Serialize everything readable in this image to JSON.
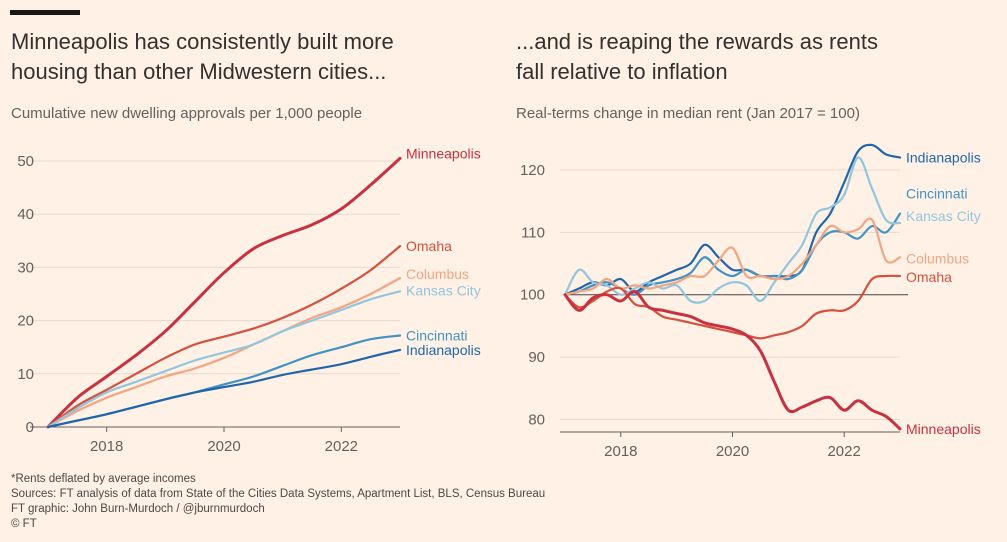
{
  "left": {
    "title_line1": "Minneapolis has consistently built more",
    "title_line2": "housing than other Midwestern cities...",
    "subtitle": "Cumulative new dwelling approvals per 1,000 people"
  },
  "right": {
    "title_line1": "...and is reaping the rewards as rents",
    "title_line2": "fall relative to inflation",
    "subtitle": "Real-terms change in median rent (Jan 2017 = 100)"
  },
  "footer": {
    "note": "*Rents deflated by average incomes",
    "sources": "Sources: FT analysis of data from State of the Cities Data Systems, Apartment List, BLS, Census Bureau",
    "credit": "FT graphic: John Burn-Murdoch / @jburnmurdoch",
    "copyright": "© FT"
  },
  "colors": {
    "background": "#fff1e5",
    "Minneapolis": "#c8313f",
    "Omaha": "#d6503e",
    "Columbus": "#f2a582",
    "Kansas City": "#92c5de",
    "Cincinnati": "#4393c3",
    "Indianapolis": "#2166ac"
  },
  "chart_data": [
    {
      "type": "line",
      "title": "Minneapolis has consistently built more housing than other Midwestern cities...",
      "subtitle": "Cumulative new dwelling approvals per 1,000 people",
      "xlim": [
        2017,
        2023
      ],
      "ylim": [
        0,
        50
      ],
      "x_ticks": [
        "2018",
        "2020",
        "2022"
      ],
      "y_ticks": [
        "0",
        "10",
        "20",
        "30",
        "40",
        "50"
      ],
      "grid": "horizontal",
      "series": [
        {
          "name": "Minneapolis",
          "x": [
            2017,
            2017.5,
            2018,
            2018.5,
            2019,
            2019.5,
            2020,
            2020.5,
            2021,
            2021.5,
            2022,
            2022.5,
            2023
          ],
          "values": [
            0,
            5.5,
            9.5,
            13.5,
            18,
            23.5,
            29,
            33.5,
            36,
            38,
            41,
            45.5,
            50.5
          ]
        },
        {
          "name": "Omaha",
          "x": [
            2017,
            2017.5,
            2018,
            2018.5,
            2019,
            2019.5,
            2020,
            2020.5,
            2021,
            2021.5,
            2022,
            2022.5,
            2023
          ],
          "values": [
            0,
            4,
            7,
            10,
            13,
            15.5,
            17,
            18.5,
            20.5,
            23,
            26,
            29.5,
            34
          ]
        },
        {
          "name": "Columbus",
          "x": [
            2017,
            2017.5,
            2018,
            2018.5,
            2019,
            2019.5,
            2020,
            2020.5,
            2021,
            2021.5,
            2022,
            2022.5,
            2023
          ],
          "values": [
            0,
            3,
            5.5,
            7.5,
            9.5,
            11,
            13,
            15.5,
            18,
            20.5,
            22.5,
            25,
            28
          ]
        },
        {
          "name": "Kansas City",
          "x": [
            2017,
            2017.5,
            2018,
            2018.5,
            2019,
            2019.5,
            2020,
            2020.5,
            2021,
            2021.5,
            2022,
            2022.5,
            2023
          ],
          "values": [
            0,
            3.5,
            6.5,
            8.5,
            10.5,
            12.5,
            14,
            15.5,
            18,
            20,
            22,
            24,
            25.5
          ]
        },
        {
          "name": "Cincinnati",
          "x": [
            2017,
            2017.5,
            2018,
            2018.5,
            2019,
            2019.5,
            2020,
            2020.5,
            2021,
            2021.5,
            2022,
            2022.5,
            2023
          ],
          "values": [
            0,
            1.2,
            2.4,
            3.8,
            5.2,
            6.5,
            8,
            9.5,
            11.5,
            13.5,
            15,
            16.5,
            17.2
          ]
        },
        {
          "name": "Indianapolis",
          "x": [
            2017,
            2017.5,
            2018,
            2018.5,
            2019,
            2019.5,
            2020,
            2020.5,
            2021,
            2021.5,
            2022,
            2022.5,
            2023
          ],
          "values": [
            0,
            1.2,
            2.4,
            3.8,
            5.2,
            6.5,
            7.5,
            8.5,
            9.8,
            10.8,
            11.8,
            13.2,
            14.5
          ]
        }
      ]
    },
    {
      "type": "line",
      "title": "...and is reaping the rewards as rents fall relative to inflation",
      "subtitle": "Real-terms change in median rent (Jan 2017 = 100)",
      "xlim": [
        2017,
        2023
      ],
      "ylim": [
        78,
        124
      ],
      "x_ticks": [
        "2018",
        "2020",
        "2022"
      ],
      "y_ticks": [
        "80",
        "90",
        "100",
        "110",
        "120"
      ],
      "reference_line": 100,
      "grid": "horizontal",
      "series": [
        {
          "name": "Indianapolis",
          "x": [
            2017,
            2017.25,
            2017.5,
            2017.75,
            2018,
            2018.25,
            2018.5,
            2018.75,
            2019,
            2019.25,
            2019.5,
            2019.75,
            2020,
            2020.25,
            2020.5,
            2020.75,
            2021,
            2021.25,
            2021.5,
            2021.75,
            2022,
            2022.25,
            2022.5,
            2022.75,
            2023
          ],
          "values": [
            100,
            101,
            102,
            101.5,
            102.5,
            100.5,
            102,
            103,
            104,
            105,
            108,
            106,
            104,
            104,
            103,
            103,
            103,
            104,
            110,
            113,
            118,
            123,
            124,
            122.5,
            122
          ]
        },
        {
          "name": "Cincinnati",
          "x": [
            2017,
            2017.25,
            2017.5,
            2017.75,
            2018,
            2018.25,
            2018.5,
            2018.75,
            2019,
            2019.25,
            2019.5,
            2019.75,
            2020,
            2020.25,
            2020.5,
            2020.75,
            2021,
            2021.25,
            2021.5,
            2021.75,
            2022,
            2022.25,
            2022.5,
            2022.75,
            2023
          ],
          "values": [
            100,
            100.5,
            101.5,
            102,
            101,
            100,
            101.5,
            102,
            102.5,
            103.5,
            106,
            104,
            103,
            104,
            103,
            103,
            102.5,
            104,
            108,
            110,
            110,
            109,
            111,
            110,
            113
          ]
        },
        {
          "name": "Kansas City",
          "x": [
            2017,
            2017.25,
            2017.5,
            2017.75,
            2018,
            2018.25,
            2018.5,
            2018.75,
            2019,
            2019.25,
            2019.5,
            2019.75,
            2020,
            2020.25,
            2020.5,
            2020.75,
            2021,
            2021.25,
            2021.5,
            2021.75,
            2022,
            2022.25,
            2022.5,
            2022.75,
            2023
          ],
          "values": [
            100,
            104,
            102,
            101.5,
            100,
            101,
            102,
            101,
            101.5,
            99,
            99,
            101,
            102,
            101.5,
            99,
            102,
            105,
            108,
            113,
            114,
            116,
            122,
            117,
            112,
            111.5
          ]
        },
        {
          "name": "Columbus",
          "x": [
            2017,
            2017.25,
            2017.5,
            2017.75,
            2018,
            2018.25,
            2018.5,
            2018.75,
            2019,
            2019.25,
            2019.5,
            2019.75,
            2020,
            2020.25,
            2020.5,
            2020.75,
            2021,
            2021.25,
            2021.5,
            2021.75,
            2022,
            2022.25,
            2022.5,
            2022.75,
            2023
          ],
          "values": [
            100,
            100.5,
            101,
            102.5,
            101,
            101.5,
            101,
            101.5,
            102,
            103,
            103,
            105.5,
            107.5,
            103,
            103,
            102.5,
            103,
            105,
            108,
            111,
            110,
            110.5,
            112,
            105.5,
            106
          ]
        },
        {
          "name": "Omaha",
          "x": [
            2017,
            2017.25,
            2017.5,
            2017.75,
            2018,
            2018.25,
            2018.5,
            2018.75,
            2019,
            2019.25,
            2019.5,
            2019.75,
            2020,
            2020.25,
            2020.5,
            2020.75,
            2021,
            2021.25,
            2021.5,
            2021.75,
            2022,
            2022.25,
            2022.5,
            2022.75,
            2023
          ],
          "values": [
            100,
            98,
            99,
            100.5,
            101,
            98.5,
            98,
            96.5,
            96,
            95.5,
            95,
            94.5,
            94,
            93.5,
            93,
            93.5,
            94,
            95,
            97,
            97.5,
            97.5,
            99,
            102.5,
            103,
            103
          ]
        },
        {
          "name": "Minneapolis",
          "x": [
            2017,
            2017.25,
            2017.5,
            2017.75,
            2018,
            2018.25,
            2018.5,
            2018.75,
            2019,
            2019.25,
            2019.5,
            2019.75,
            2020,
            2020.25,
            2020.5,
            2020.75,
            2021,
            2021.25,
            2021.5,
            2021.75,
            2022,
            2022.25,
            2022.5,
            2022.75,
            2023
          ],
          "values": [
            100,
            97.5,
            99.5,
            100,
            99,
            100.5,
            98,
            97.5,
            97,
            96.5,
            95.5,
            95,
            94.5,
            93.5,
            91,
            86,
            81.5,
            82,
            83,
            83.5,
            81.5,
            83,
            81.5,
            80.5,
            78.5
          ]
        }
      ]
    }
  ]
}
